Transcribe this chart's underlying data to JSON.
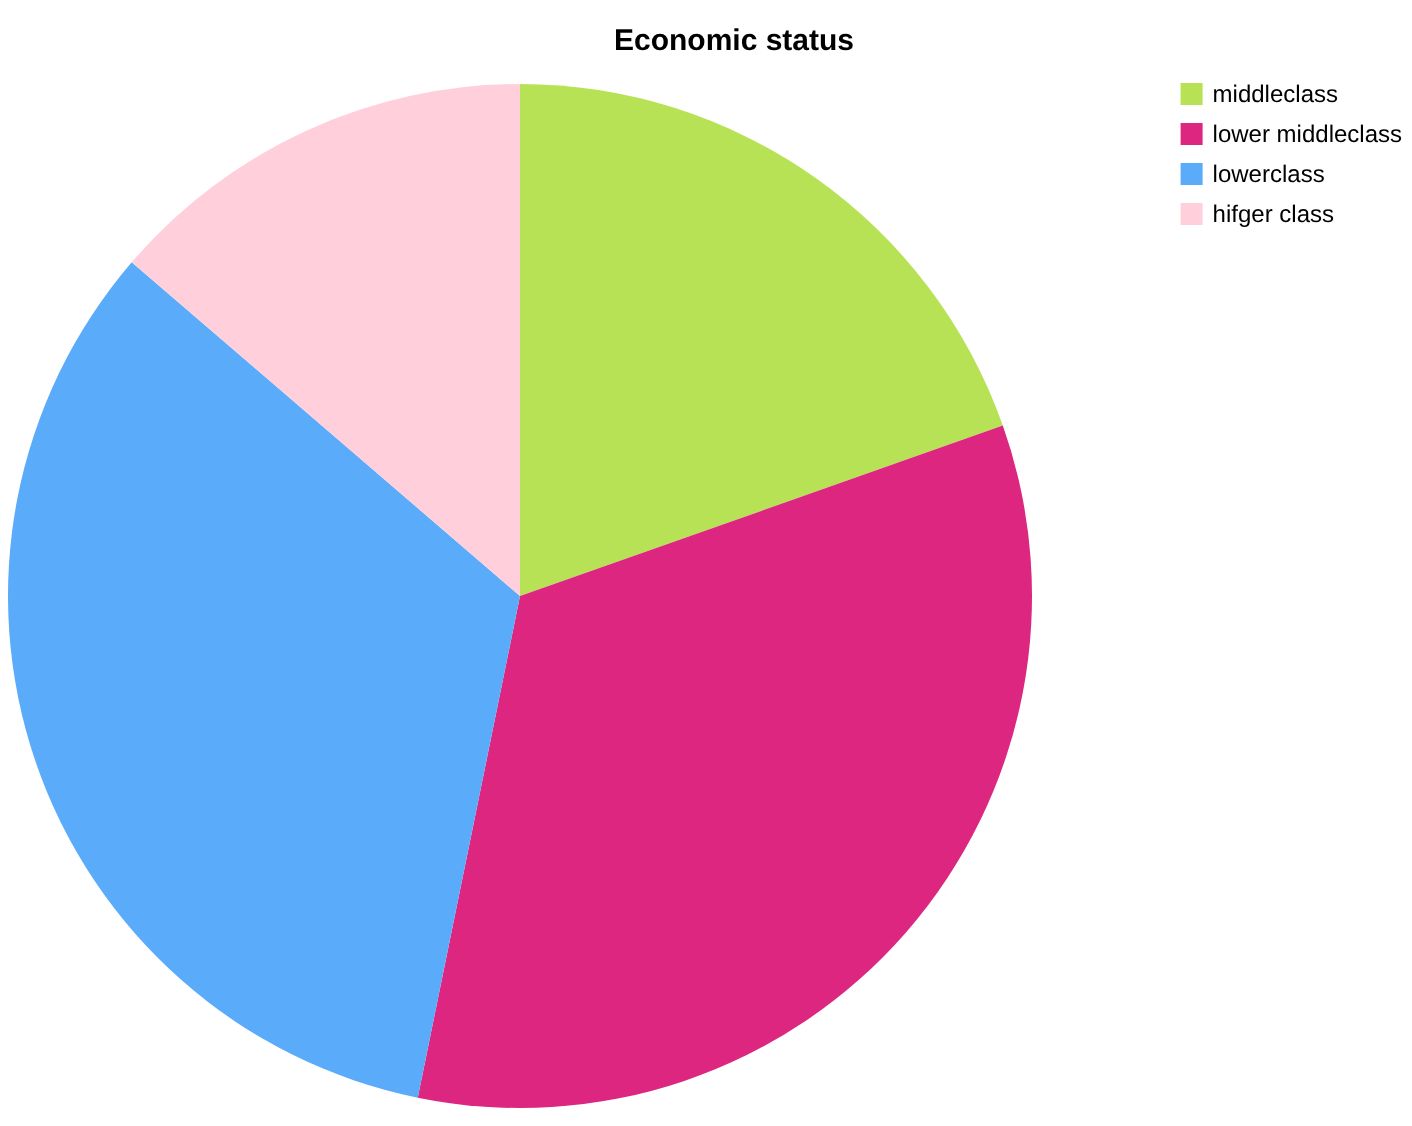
{
  "chart_data": {
    "type": "pie",
    "title": "Economic status",
    "categories": [
      "middleclass",
      "lower middleclass",
      "lowerclass",
      "hifger class"
    ],
    "values": [
      19.6,
      33.6,
      33.1,
      13.7
    ],
    "colors": [
      "#b8e255",
      "#dc2680",
      "#5aabf9",
      "#ffd0dc"
    ],
    "legend": "top right"
  }
}
